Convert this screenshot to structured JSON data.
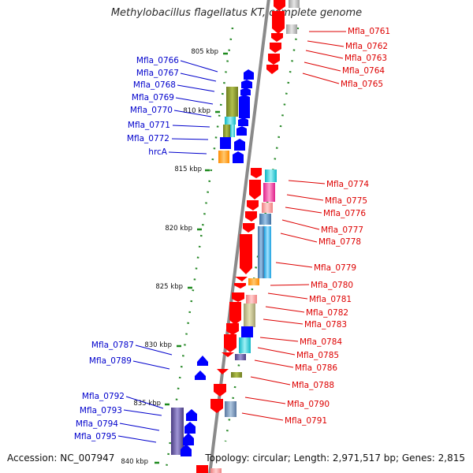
{
  "title": "Methylobacillus flagellatus KT, complete genome",
  "footer": {
    "accession": "Accession: NC_007947",
    "summary": "Topology: circular; Length: 2,971,517 bp; Genes: 2,815"
  },
  "colors": {
    "axis": "#8a8a8a",
    "tick": "#1e8a1e",
    "forward_label": "#0000cc",
    "reverse_label": "#dd0000",
    "forward_gene": "#0000ff",
    "reverse_gene": "#ff0000"
  },
  "scale": {
    "unit": "kbp",
    "ticks": [
      805,
      810,
      815,
      820,
      825,
      830,
      835,
      840
    ]
  },
  "labels": {
    "forward": [
      "Mfla_0766",
      "Mfla_0767",
      "Mfla_0768",
      "Mfla_0769",
      "Mfla_0770",
      "Mfla_0771",
      "Mfla_0772",
      "hrcA",
      "Mfla_0787",
      "Mfla_0789",
      "Mfla_0792",
      "Mfla_0793",
      "Mfla_0794",
      "Mfla_0795"
    ],
    "reverse": [
      "Mfla_0761",
      "Mfla_0762",
      "Mfla_0763",
      "Mfla_0764",
      "Mfla_0765",
      "Mfla_0774",
      "Mfla_0775",
      "Mfla_0776",
      "Mfla_0777",
      "Mfla_0778",
      "Mfla_0779",
      "Mfla_0780",
      "Mfla_0781",
      "Mfla_0782",
      "Mfla_0783",
      "Mfla_0784",
      "Mfla_0785",
      "Mfla_0786",
      "Mfla_0788",
      "Mfla_0790",
      "Mfla_0791"
    ]
  }
}
